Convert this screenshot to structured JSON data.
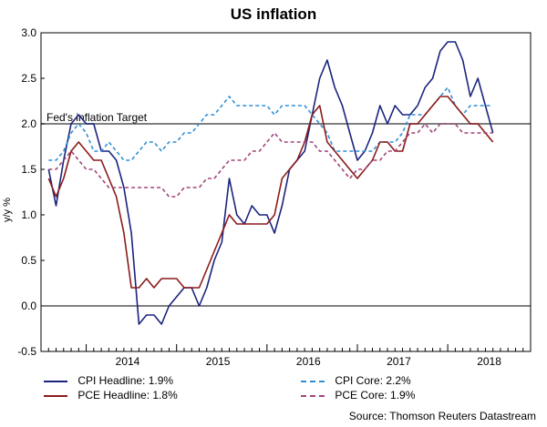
{
  "chart_data": {
    "type": "line",
    "title": "US inflation",
    "ylabel": "y/y %",
    "xlabel": "",
    "ylim": [
      -0.5,
      3.0
    ],
    "y_ticks": [
      "-0.5",
      "0.0",
      "0.5",
      "1.0",
      "1.5",
      "2.0",
      "2.5",
      "3.0"
    ],
    "x_ticks": [
      "2014",
      "2015",
      "2016",
      "2017",
      "2018"
    ],
    "x_tick_months": [
      0,
      12,
      24,
      36,
      48
    ],
    "month_zero": "Jan 2014",
    "grid": false,
    "reference_line": {
      "label": "Fed's inflation Target",
      "value": 2.0
    },
    "series": [
      {
        "name": "CPI Headline",
        "legend": "CPI Headline: 1.9%",
        "color": "#1a237e",
        "dash": "solid",
        "start_month": -5,
        "values": [
          1.5,
          1.1,
          1.6,
          2.0,
          2.1,
          2.0,
          2.0,
          1.7,
          1.7,
          1.6,
          1.3,
          0.8,
          -0.2,
          -0.1,
          -0.1,
          -0.2,
          0.0,
          0.1,
          0.2,
          0.2,
          0.0,
          0.2,
          0.5,
          0.7,
          1.4,
          1.0,
          0.9,
          1.1,
          1.0,
          1.0,
          0.8,
          1.1,
          1.5,
          1.6,
          1.7,
          2.1,
          2.5,
          2.7,
          2.4,
          2.2,
          1.9,
          1.6,
          1.7,
          1.9,
          2.2,
          2.0,
          2.2,
          2.1,
          2.1,
          2.2,
          2.4,
          2.5,
          2.8,
          2.9,
          2.9,
          2.7,
          2.3,
          2.5,
          2.2,
          1.9
        ]
      },
      {
        "name": "CPI Core",
        "legend": "CPI Core: 2.2%",
        "color": "#2f8fd6",
        "dash": "dashed",
        "start_month": -5,
        "values": [
          1.6,
          1.6,
          1.7,
          1.9,
          2.0,
          1.9,
          1.7,
          1.7,
          1.8,
          1.7,
          1.6,
          1.6,
          1.7,
          1.8,
          1.8,
          1.7,
          1.8,
          1.8,
          1.9,
          1.9,
          2.0,
          2.1,
          2.1,
          2.2,
          2.3,
          2.2,
          2.2,
          2.2,
          2.2,
          2.2,
          2.1,
          2.2,
          2.2,
          2.2,
          2.2,
          2.1,
          2.0,
          1.9,
          1.7,
          1.7,
          1.7,
          1.7,
          1.7,
          1.7,
          1.8,
          1.8,
          1.8,
          1.9,
          2.1,
          2.1,
          2.1,
          2.2,
          2.3,
          2.4,
          2.2,
          2.1,
          2.2,
          2.2,
          2.2,
          2.2
        ]
      },
      {
        "name": "PCE Headline",
        "legend": "PCE Headline: 1.8%",
        "color": "#8b1a1a",
        "dash": "solid",
        "start_month": -5,
        "values": [
          1.4,
          1.2,
          1.4,
          1.7,
          1.8,
          1.7,
          1.6,
          1.6,
          1.4,
          1.2,
          0.8,
          0.2,
          0.2,
          0.3,
          0.2,
          0.3,
          0.3,
          0.3,
          0.2,
          0.2,
          0.2,
          0.4,
          0.6,
          0.8,
          1.0,
          0.9,
          0.9,
          0.9,
          0.9,
          0.9,
          1.0,
          1.4,
          1.5,
          1.6,
          1.8,
          2.1,
          2.2,
          1.8,
          1.7,
          1.6,
          1.5,
          1.4,
          1.5,
          1.6,
          1.8,
          1.8,
          1.7,
          1.7,
          2.0,
          2.0,
          2.1,
          2.2,
          2.3,
          2.3,
          2.2,
          2.1,
          2.0,
          2.0,
          1.9,
          1.8
        ]
      },
      {
        "name": "PCE Core",
        "legend": "PCE Core: 1.9%",
        "color": "#a0457a",
        "dash": "dashed",
        "start_month": -5,
        "values": [
          1.5,
          1.5,
          1.6,
          1.7,
          1.6,
          1.5,
          1.5,
          1.4,
          1.3,
          1.3,
          1.3,
          1.3,
          1.3,
          1.3,
          1.3,
          1.3,
          1.2,
          1.2,
          1.3,
          1.3,
          1.3,
          1.4,
          1.4,
          1.5,
          1.6,
          1.6,
          1.6,
          1.7,
          1.7,
          1.8,
          1.9,
          1.8,
          1.8,
          1.8,
          1.8,
          1.8,
          1.7,
          1.7,
          1.6,
          1.5,
          1.4,
          1.5,
          1.5,
          1.6,
          1.6,
          1.7,
          1.7,
          1.8,
          1.9,
          1.9,
          2.0,
          1.9,
          2.0,
          2.0,
          2.0,
          1.9,
          1.9,
          1.9,
          1.9,
          1.9
        ]
      }
    ],
    "source": "Source: Thomson Reuters Datastream"
  }
}
